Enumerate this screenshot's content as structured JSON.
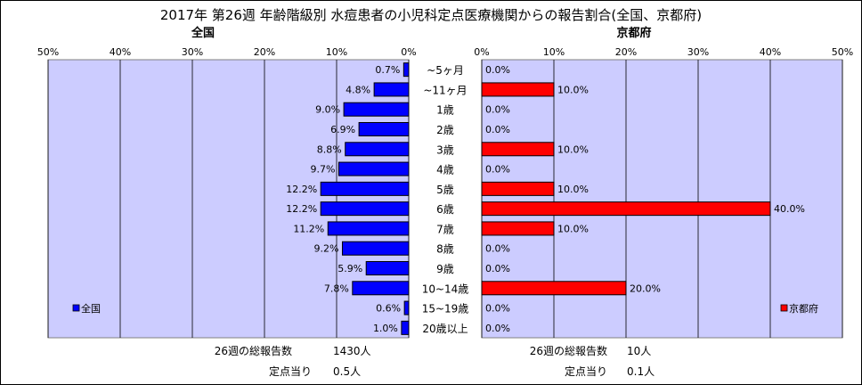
{
  "title": "2017年 第26週 年齢階級別 水痘患者の小児科定点医療機関からの報告割合(全国、京都府)",
  "chart_data": {
    "type": "bar",
    "categories": [
      "~5ヶ月",
      "~11ヶ月",
      "1歳",
      "2歳",
      "3歳",
      "4歳",
      "5歳",
      "6歳",
      "7歳",
      "8歳",
      "9歳",
      "10~14歳",
      "15~19歳",
      "20歳以上"
    ],
    "xlim": [
      0,
      50
    ],
    "xticks": [
      0,
      10,
      20,
      30,
      40,
      50
    ],
    "tick_suffix": "%",
    "grid": true,
    "series": [
      {
        "name": "全国",
        "panel_title": "全国",
        "values": [
          0.7,
          4.8,
          9.0,
          6.9,
          8.8,
          9.7,
          12.2,
          12.2,
          11.2,
          9.2,
          5.9,
          7.8,
          0.6,
          1.0
        ],
        "labels": [
          "0.7%",
          "4.8%",
          "9.0%",
          "6.9%",
          "8.8%",
          "9.7%",
          "12.2%",
          "12.2%",
          "11.2%",
          "9.2%",
          "5.9%",
          "7.8%",
          "0.6%",
          "1.0%"
        ],
        "color": "#0000ff",
        "direction": "left",
        "legend_position": "bottom-left"
      },
      {
        "name": "京都府",
        "panel_title": "京都府",
        "values": [
          0,
          10.0,
          0,
          0,
          10.0,
          0,
          10.0,
          40.0,
          10.0,
          0,
          0,
          20.0,
          0,
          0
        ],
        "labels": [
          "0.0%",
          "10.0%",
          "0.0%",
          "0.0%",
          "10.0%",
          "0.0%",
          "10.0%",
          "40.0%",
          "10.0%",
          "0.0%",
          "0.0%",
          "20.0%",
          "0.0%",
          "0.0%"
        ],
        "color": "#ff0000",
        "direction": "right",
        "legend_position": "bottom-right"
      }
    ],
    "plot_background": "#ccccff"
  },
  "footer": {
    "national": {
      "total_label": "26週の総報告数",
      "total_value": "1430人",
      "per_label": "定点当り",
      "per_value": "0.5人"
    },
    "kyoto": {
      "total_label": "26週の総報告数",
      "total_value": "10人",
      "per_label": "定点当り",
      "per_value": "0.1人"
    }
  }
}
